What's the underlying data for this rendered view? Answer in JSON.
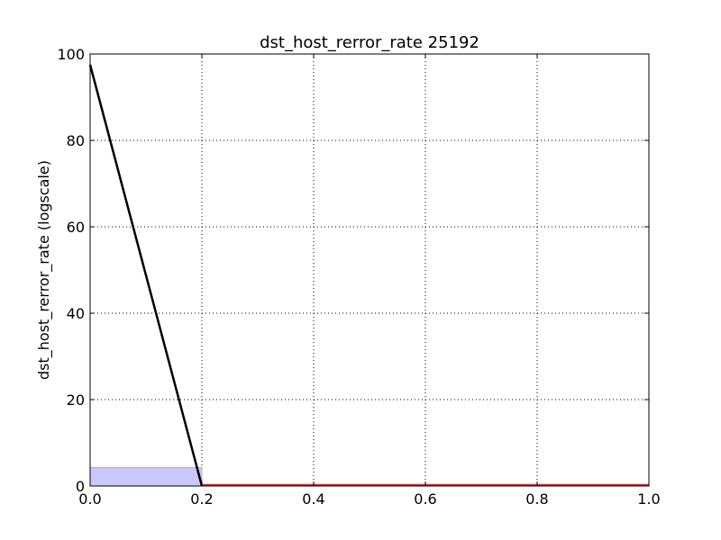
{
  "chart_data": {
    "type": "line",
    "title": "dst_host_rerror_rate 25192",
    "xlabel": "",
    "ylabel": "dst_host_rerror_rate (logscale)",
    "xlim": [
      0.0,
      1.0
    ],
    "ylim": [
      0,
      100
    ],
    "x_ticks": [
      "0.0",
      "0.2",
      "0.4",
      "0.6",
      "0.8",
      "1.0"
    ],
    "y_ticks": [
      "0",
      "20",
      "40",
      "60",
      "80",
      "100"
    ],
    "grid": true,
    "series": [
      {
        "kind": "line",
        "color": "#000000",
        "points": [
          [
            0.0,
            97.5
          ],
          [
            0.2,
            0.0
          ]
        ]
      },
      {
        "kind": "line",
        "color": "#d62728",
        "points": [
          [
            0.2,
            0.2
          ],
          [
            1.0,
            0.2
          ]
        ]
      }
    ],
    "bars": [
      {
        "x0": 0.0,
        "x1": 0.2,
        "value": 4.3,
        "fill": "#c8c8ff",
        "edge": "#c8a8a8"
      }
    ]
  }
}
